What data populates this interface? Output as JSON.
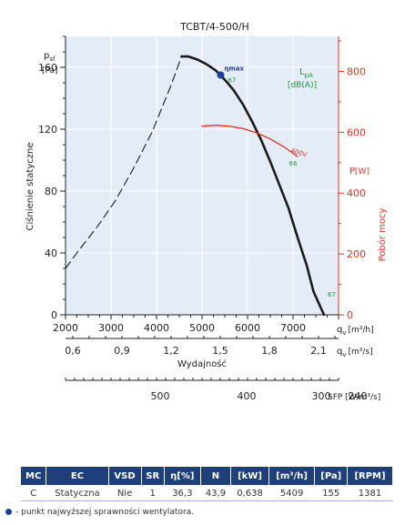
{
  "chart_data": {
    "type": "line",
    "title": "TCBT/4-500/H",
    "x_axis": {
      "label": "q",
      "sublabel": "v",
      "unit": "[m³/h]",
      "range": [
        2000,
        8000
      ],
      "ticks": [
        2000,
        3000,
        4000,
        5000,
        6000,
        7000
      ]
    },
    "x2_axis": {
      "label": "q",
      "sublabel": "v",
      "unit": "[m³/s]",
      "ticks": [
        0.6,
        0.9,
        1.2,
        1.5,
        1.8,
        2.1
      ],
      "tick_labels": [
        "0,6",
        "0,9",
        "1,2",
        "1,5",
        "1,8",
        "2,1"
      ],
      "caption": "Wydajność"
    },
    "sfp_axis": {
      "label": "SFP [W/m³/s]",
      "ticks": [
        500,
        400,
        300,
        240
      ],
      "tick_x_m3h": [
        2000,
        3900,
        5540,
        6340
      ]
    },
    "y_axis": {
      "symbol": "p",
      "sub": "sf",
      "unit": "[Pa]",
      "caption": "Ciśnienie statyczne",
      "range": [
        0,
        180
      ],
      "ticks": [
        0,
        40,
        80,
        120,
        160
      ]
    },
    "y2_axis": {
      "symbol": "P",
      "unit": "[W]",
      "caption": "Pobór mocy",
      "range": [
        0,
        915
      ],
      "ticks": [
        0,
        200,
        400,
        600,
        800
      ],
      "color": "#e53020"
    },
    "sound_label": {
      "symbol": "L",
      "sub": "pA",
      "unit": "[dB(A)]",
      "color": "#1a9a3a"
    },
    "series": [
      {
        "name": "",
        "style": "solid",
        "color": "#1a1a1a",
        "x": [
          4550,
          4700,
          4900,
          5100,
          5300,
          5500,
          5700,
          5900,
          6100,
          6300,
          6500,
          6700,
          6900,
          7100,
          7300,
          7450,
          7680
        ],
        "y": [
          167,
          167,
          165,
          162,
          158,
          152,
          145,
          136,
          125,
          113,
          99,
          84,
          69,
          50,
          32,
          15,
          0
        ]
      },
      {
        "name": "",
        "style": "dashed",
        "color": "#1a1a1a",
        "x": [
          2000,
          2300,
          2700,
          3100,
          3500,
          3900,
          4300,
          4550
        ],
        "y": [
          30,
          42,
          57,
          74,
          95,
          118,
          147,
          167
        ]
      },
      {
        "name": "400V",
        "style": "solid",
        "color": "#e53020",
        "x": [
          5000,
          5300,
          5600,
          5900,
          6200,
          6500,
          6800,
          7100
        ],
        "y": [
          620,
          623,
          620,
          612,
          598,
          578,
          552,
          520
        ]
      }
    ],
    "annotations": [
      {
        "text": "ηmax",
        "x": 5409,
        "y": 155,
        "color": "#1f3f9e"
      },
      {
        "text": "67",
        "x": 5409,
        "y": 155,
        "color": "#1a9a3a"
      },
      {
        "text": "66",
        "x": 6850,
        "y": 70,
        "color": "#1a9a3a"
      },
      {
        "text": "67",
        "x": 7680,
        "y": 6,
        "color": "#1a9a3a"
      },
      {
        "text": "400V",
        "x": 7100,
        "y_w": 520,
        "color": "#e53020"
      }
    ]
  },
  "table": {
    "headers": [
      "MC",
      "EC",
      "VSD",
      "SR",
      "η[%]",
      "N",
      "[kW]",
      "[m³/h]",
      "[Pa]",
      "[RPM]"
    ],
    "row": [
      "C",
      "Statyczna",
      "Nie",
      "1",
      "36,3",
      "43,9",
      "0,638",
      "5409",
      "155",
      "1381"
    ]
  },
  "footnote": "- punkt najwyższej sprawności wentylatora."
}
